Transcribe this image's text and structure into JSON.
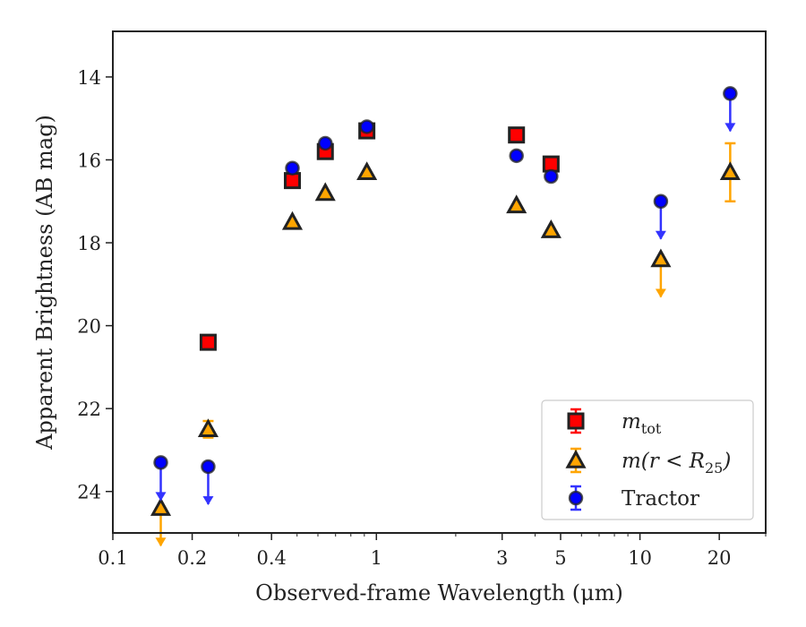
{
  "chart_data": {
    "type": "scatter",
    "title": "",
    "xlabel": "Observed-frame Wavelength (μm)",
    "ylabel": "Apparent Brightness (AB mag)",
    "xscale": "log",
    "xlim": [
      0.1,
      30
    ],
    "ylim": [
      25.0,
      12.9
    ],
    "y_inverted": true,
    "xticks": [
      0.1,
      0.2,
      0.4,
      1,
      3,
      5,
      10,
      20
    ],
    "xtick_labels": [
      "0.1",
      "0.2",
      "0.4",
      "1",
      "3",
      "5",
      "10",
      "20"
    ],
    "yticks": [
      14,
      16,
      18,
      20,
      22,
      24
    ],
    "ytick_labels": [
      "14",
      "16",
      "18",
      "20",
      "22",
      "24"
    ],
    "grid": false,
    "legend_position": "lower-right",
    "series": [
      {
        "name": "m_tot",
        "legend_label": {
          "base": "m",
          "sub": "tot"
        },
        "marker": "square",
        "color": "#e31a1c",
        "points": [
          {
            "x": 0.23,
            "y": 20.4,
            "err": 0.1
          },
          {
            "x": 0.48,
            "y": 16.5,
            "err": 0.1
          },
          {
            "x": 0.64,
            "y": 15.8,
            "err": 0.1
          },
          {
            "x": 0.92,
            "y": 15.3,
            "err": 0.1
          },
          {
            "x": 3.4,
            "y": 15.4,
            "err": 0.1
          },
          {
            "x": 4.6,
            "y": 16.1,
            "err": 0.1
          }
        ]
      },
      {
        "name": "m(r < R_25)",
        "legend_label": {
          "base": "m(r < R",
          "sub": "25",
          "tail": ")"
        },
        "marker": "triangle",
        "color": "#ffa500",
        "points": [
          {
            "x": 0.152,
            "y": 24.4,
            "upper_limit": true
          },
          {
            "x": 0.23,
            "y": 22.5,
            "err": 0.2
          },
          {
            "x": 0.48,
            "y": 17.5
          },
          {
            "x": 0.64,
            "y": 16.8
          },
          {
            "x": 0.92,
            "y": 16.3
          },
          {
            "x": 3.4,
            "y": 17.1
          },
          {
            "x": 4.6,
            "y": 17.7
          },
          {
            "x": 12.0,
            "y": 18.4,
            "upper_limit": true
          },
          {
            "x": 22.0,
            "y": 16.3,
            "err": 0.7
          }
        ]
      },
      {
        "name": "Tractor",
        "legend_label": {
          "base": "Tractor"
        },
        "marker": "circle",
        "color": "#0000ff",
        "points": [
          {
            "x": 0.152,
            "y": 23.3,
            "upper_limit": true
          },
          {
            "x": 0.23,
            "y": 23.4,
            "upper_limit": true
          },
          {
            "x": 0.48,
            "y": 16.2
          },
          {
            "x": 0.64,
            "y": 15.6
          },
          {
            "x": 0.92,
            "y": 15.2
          },
          {
            "x": 3.4,
            "y": 15.9
          },
          {
            "x": 4.6,
            "y": 16.4
          },
          {
            "x": 12.0,
            "y": 17.0,
            "upper_limit": true
          },
          {
            "x": 22.0,
            "y": 14.4,
            "upper_limit": true
          }
        ]
      }
    ]
  }
}
